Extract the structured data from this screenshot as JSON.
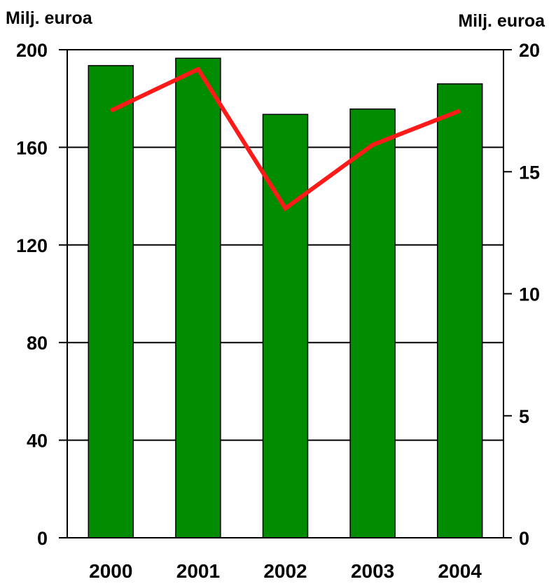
{
  "chart_data": {
    "type": "bar",
    "categories": [
      "2000",
      "2001",
      "2002",
      "2003",
      "2004"
    ],
    "series": [
      {
        "type": "bar",
        "axis": "left",
        "values": [
          193.5,
          196.5,
          173.5,
          175.7,
          186.0
        ],
        "color": "#008C00"
      },
      {
        "type": "line",
        "axis": "right",
        "values": [
          17.5,
          19.2,
          13.5,
          16.1,
          17.5
        ],
        "color": "#FF1A1A"
      }
    ],
    "ylabel_left": "Milj. euroa",
    "ylabel_right": "Milj. euroa",
    "ylim_left": [
      0,
      200
    ],
    "yticks_left": [
      0,
      40,
      80,
      120,
      160,
      200
    ],
    "ylim_right": [
      0,
      20
    ],
    "yticks_right": [
      0,
      5,
      10,
      15,
      20
    ],
    "grid": true,
    "legend": "none"
  }
}
